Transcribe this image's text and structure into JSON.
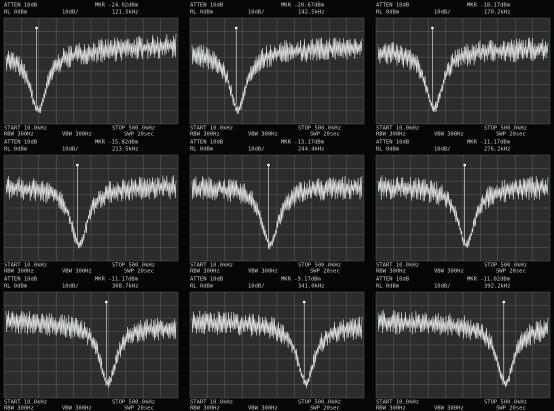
{
  "panels": [
    {
      "atten": "ATTEN 10dB",
      "mkr_level": "MKR -24.02dBm",
      "rl": "RL 0dBm",
      "scale": "10dB/",
      "mkr_freq": "121.5kHz",
      "start": "START 10.0kHz",
      "stop": "STOP 500.0kHz",
      "rbw": "RBW 300Hz",
      "vbw": "VBW 300Hz",
      "swp": "SWP 20sec"
    },
    {
      "atten": "ATTEN 10dB",
      "mkr_level": "MKR -20.67dBm",
      "rl": "RL 0dBm",
      "scale": "10dB/",
      "mkr_freq": "142.5kHz",
      "start": "START 10.0kHz",
      "stop": "STOP 500.0kHz",
      "rbw": "RBW 300Hz",
      "vbw": "VBW 300Hz",
      "swp": "SWP 20sec"
    },
    {
      "atten": "ATTEN 10dB",
      "mkr_level": "MKR -18.17dBm",
      "rl": "RL 0dBm",
      "scale": "10dB/",
      "mkr_freq": "170.2kHz",
      "start": "START 10.0kHz",
      "stop": "STOP 500.0kHz",
      "rbw": "RBW 300Hz",
      "vbw": "VBW 300Hz",
      "swp": "SWP 20sec"
    },
    {
      "atten": "ATTEN 10dB",
      "mkr_level": "MKR -15.82dBm",
      "rl": "RL 0dBm",
      "scale": "10dB/",
      "mkr_freq": "213.5kHz",
      "start": "START 10.0kHz",
      "stop": "STOP 500.0kHz",
      "rbw": "RBW 300Hz",
      "vbw": "VBW 300Hz",
      "swp": "SWP 20sec"
    },
    {
      "atten": "ATTEN 10dB",
      "mkr_level": "MKR -13.17dBm",
      "rl": "RL 0dBm",
      "scale": "10dB/",
      "mkr_freq": "244.4kHz",
      "start": "START 10.0kHz",
      "stop": "STOP 500.0kHz",
      "rbw": "RBW 300Hz",
      "vbw": "VBW 300Hz",
      "swp": "SWP 20sec"
    },
    {
      "atten": "ATTEN 10dB",
      "mkr_level": "MKR -11.17dBm",
      "rl": "RL 0dBm",
      "scale": "10dB/",
      "mkr_freq": "276.2kHz",
      "start": "START 10.0kHz",
      "stop": "STOP 500.0kHz",
      "rbw": "RBW 300Hz",
      "vbw": "VBW 300Hz",
      "swp": "SWP 20sec"
    },
    {
      "atten": "ATTEN 10dB",
      "mkr_level": "MKR -11.17dBm",
      "rl": "RL 0dBm",
      "scale": "10dB/",
      "mkr_freq": "308.7kHz",
      "start": "START 10.0kHz",
      "stop": "STOP 500.0kHz",
      "rbw": "RBW 300Hz",
      "vbw": "VBW 300Hz",
      "swp": "SWP 20sec"
    },
    {
      "atten": "ATTEN 10dB",
      "mkr_level": "MKR -9.17dBm",
      "rl": "RL 0dBm",
      "scale": "10dB/",
      "mkr_freq": "341.0kHz",
      "start": "START 10.0kHz",
      "stop": "STOP 500.0kHz",
      "rbw": "RBW 300Hz",
      "vbw": "VBW 300Hz",
      "swp": "SWP 20sec"
    },
    {
      "atten": "ATTEN 10dB",
      "mkr_level": "MKR -11.02dBm",
      "rl": "RL 0dBm",
      "scale": "10dB/",
      "mkr_freq": "392.2kHz",
      "start": "START 10.0kHz",
      "stop": "STOP 500.0kHz",
      "rbw": "RBW 300Hz",
      "vbw": "VBW 300Hz",
      "swp": "SWP 20sec"
    }
  ]
}
